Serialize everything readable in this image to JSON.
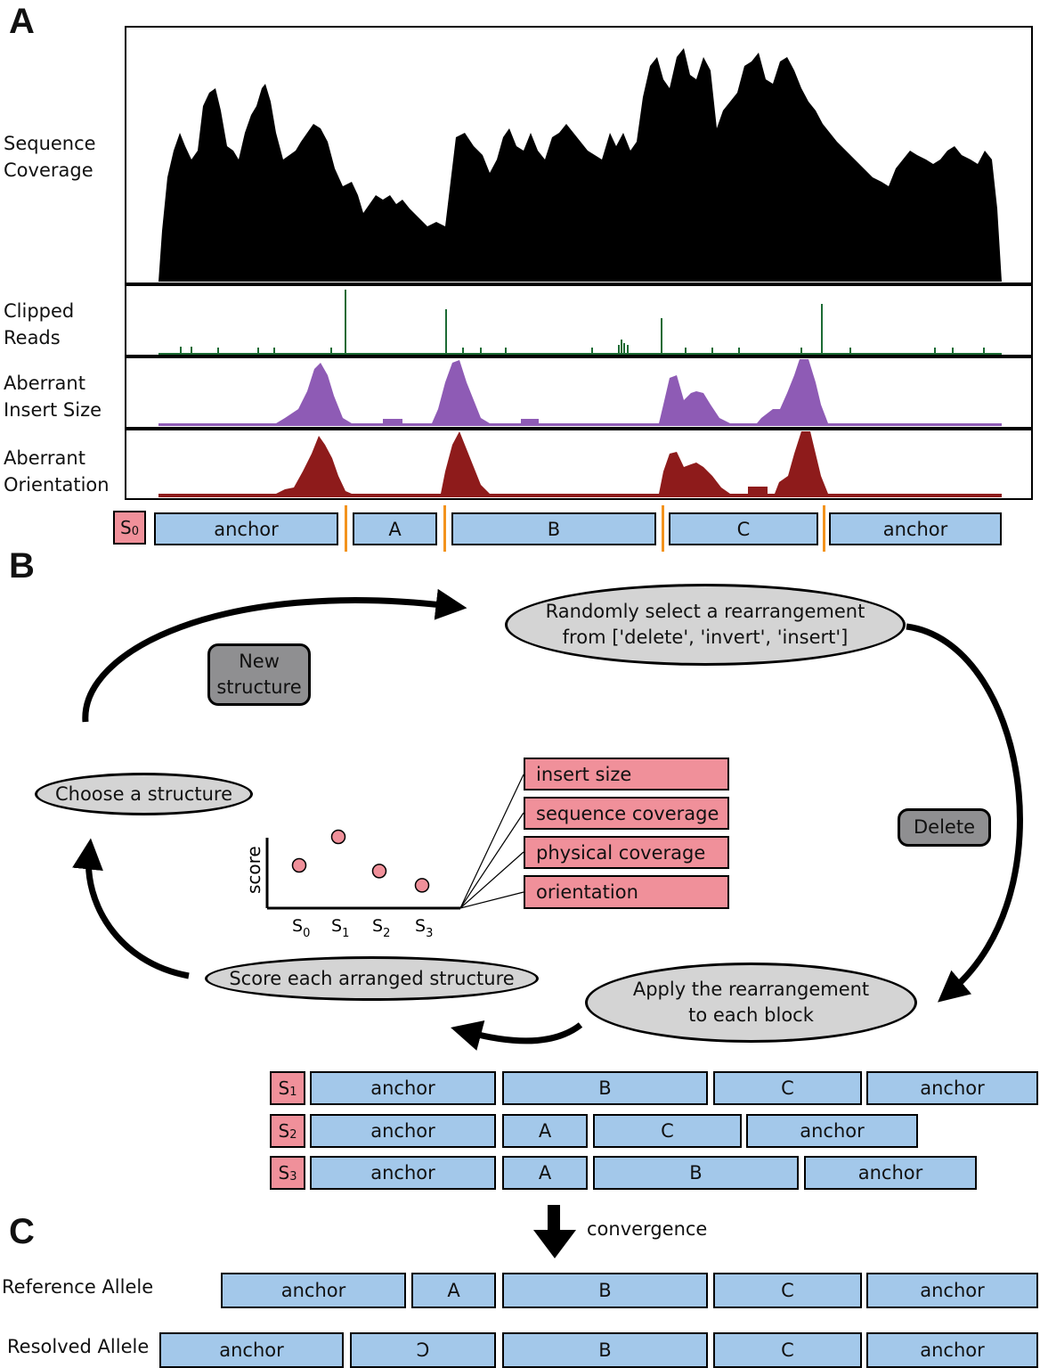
{
  "panel_a": {
    "letter": "A",
    "tracks": [
      {
        "label_line1": "Sequence",
        "label_line2": "Coverage",
        "color": "#000000"
      },
      {
        "label_line1": "Clipped",
        "label_line2": "Reads",
        "color": "#1c6b34"
      },
      {
        "label_line1": "Aberrant",
        "label_line2": "Insert Size",
        "color": "#8e5bb5"
      },
      {
        "label_line1": "Aberrant",
        "label_line2": "Orientation",
        "color": "#8e1b1b"
      }
    ],
    "structure_label": "S",
    "structure_sub": "0",
    "blocks": [
      "anchor",
      "A",
      "B",
      "C",
      "anchor"
    ]
  },
  "panel_b": {
    "letter": "B",
    "select_line1": "Randomly select a rearrangement",
    "select_line2": "from ['delete', 'invert', 'insert']",
    "new_structure_line1": "New",
    "new_structure_line2": "structure",
    "choose": "Choose a structure",
    "delete": "Delete",
    "apply_line1": "Apply the rearrangement",
    "apply_line2": "to each block",
    "score_each": "Score each arranged structure",
    "score_axis_label": "score",
    "score_points": [
      {
        "label": "S",
        "sub": "0",
        "score": 2
      },
      {
        "label": "S",
        "sub": "1",
        "score": 3
      },
      {
        "label": "S",
        "sub": "2",
        "score": 1.8
      },
      {
        "label": "S",
        "sub": "3",
        "score": 1.3
      }
    ],
    "metrics": [
      "insert size",
      "sequence coverage",
      "physical coverage",
      "orientation"
    ],
    "structures": [
      {
        "label": "S",
        "sub": "1",
        "blocks": [
          "anchor",
          "B",
          "C",
          "anchor"
        ]
      },
      {
        "label": "S",
        "sub": "2",
        "blocks": [
          "anchor",
          "A",
          "C",
          "anchor"
        ]
      },
      {
        "label": "S",
        "sub": "3",
        "blocks": [
          "anchor",
          "A",
          "B",
          "anchor"
        ]
      }
    ]
  },
  "panel_c": {
    "letter": "C",
    "convergence": "convergence",
    "reference_label": "Reference Allele",
    "reference_blocks": [
      "anchor",
      "A",
      "B",
      "C",
      "anchor"
    ],
    "resolved_label": "Resolved Allele",
    "resolved_blocks": [
      "anchor",
      "Ɔ",
      "B",
      "C",
      "anchor"
    ]
  },
  "colors": {
    "block_fill": "#a3c8ea",
    "structure_fill": "#f0909a",
    "ellipse_fill": "#d4d4d4",
    "rearrangement_fill": "#8f8f91",
    "breakpoint": "#f3931d"
  }
}
